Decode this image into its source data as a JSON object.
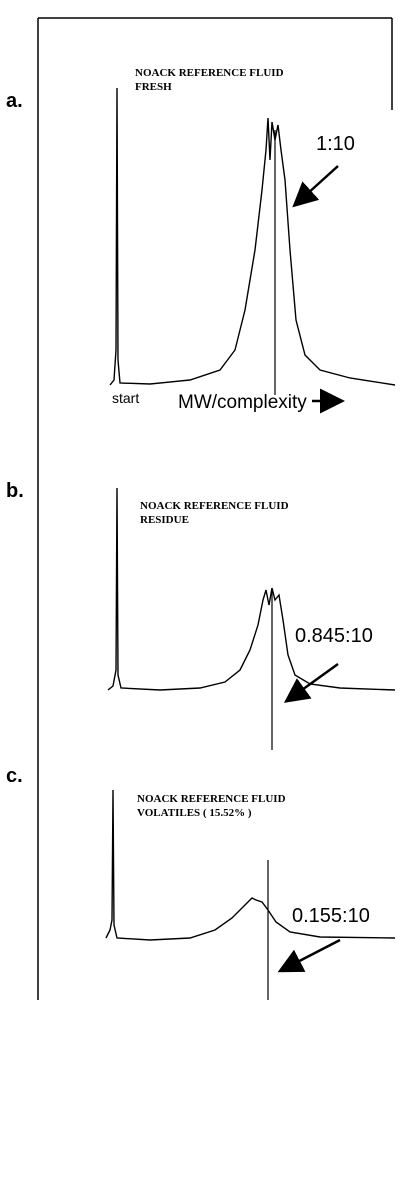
{
  "panels": [
    {
      "label": "a.",
      "title": [
        "NOACK REFERENCE FLUID",
        "FRESH"
      ],
      "ratio": "1:10",
      "x_start": "start",
      "x_axis": "MW/complexity"
    },
    {
      "label": "b.",
      "title": [
        "NOACK REFERENCE FLUID",
        "RESIDUE"
      ],
      "ratio": "0.845:10"
    },
    {
      "label": "c.",
      "title": [
        "NOACK REFERENCE FLUID",
        "VOLATILES ( 15.52% )"
      ],
      "ratio": "0.155:10"
    }
  ]
}
